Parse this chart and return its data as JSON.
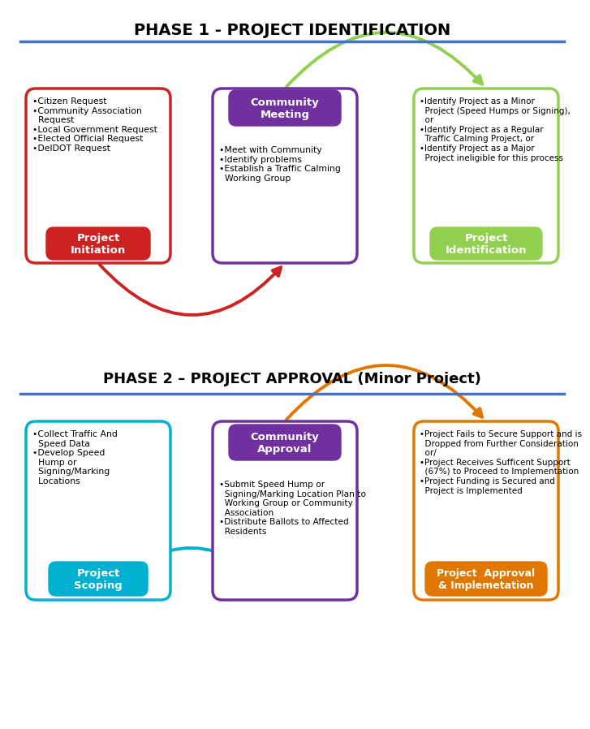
{
  "title1": "PHASE 1 - PROJECT IDENTIFICATION",
  "title2": "PHASE 2 – PROJECT APPROVAL (Minor Project)",
  "phase1": {
    "box1": {
      "label": "Project\nInitiation",
      "box_color": "#cc2222",
      "bullets": "•Citizen Request\n•Community Association\n  Request\n•Local Government Request\n•Elected Official Request\n•DelDOT Request"
    },
    "box2": {
      "label": "Community\nMeeting",
      "box_color": "#7030a0",
      "bullets": "•Meet with Community\n•Identify problems\n•Establish a Traffic Calming\n  Working Group"
    },
    "box3": {
      "label": "Project\nIdentification",
      "box_color": "#92d050",
      "bullets": "•Identify Project as a Minor\n  Project (Speed Humps or Signing),\n  or\n•Identify Project as a Regular\n  Traffic Calming Project, or\n•Identify Project as a Major\n  Project ineligible for this process"
    }
  },
  "phase2": {
    "box1": {
      "label": "Project\nScoping",
      "box_color": "#00b0d0",
      "bullets": "•Collect Traffic And\n  Speed Data\n•Develop Speed\n  Hump or\n  Signing/Marking\n  Locations"
    },
    "box2": {
      "label": "Community\nApproval",
      "box_color": "#7030a0",
      "bullets": "•Submit Speed Hump or\n  Signing/Marking Location Plan to\n  Working Group or Community\n  Association\n•Distribute Ballots to Affected\n  Residents"
    },
    "box3": {
      "label": "Project  Approval\n& Implemetation",
      "box_color": "#e07800",
      "bullets": "•Project Fails to Secure Support and is\n  Dropped from Further Consideration\n  or/\n•Project Receives Sufficent Support\n  (67%) to Proceed to Implementation\n•Project Funding is Secured and\n  Project is Implemented"
    }
  },
  "arrow_green": "#92d050",
  "arrow_red": "#cc2222",
  "arrow_orange": "#e07800",
  "arrow_teal": "#00b0d0",
  "divider_color": "#4472c4",
  "bg_color": "#ffffff",
  "title1_fontsize": 14,
  "title2_fontsize": 13,
  "bullet_fontsize": 7.8,
  "label_fontsize": 9.5
}
